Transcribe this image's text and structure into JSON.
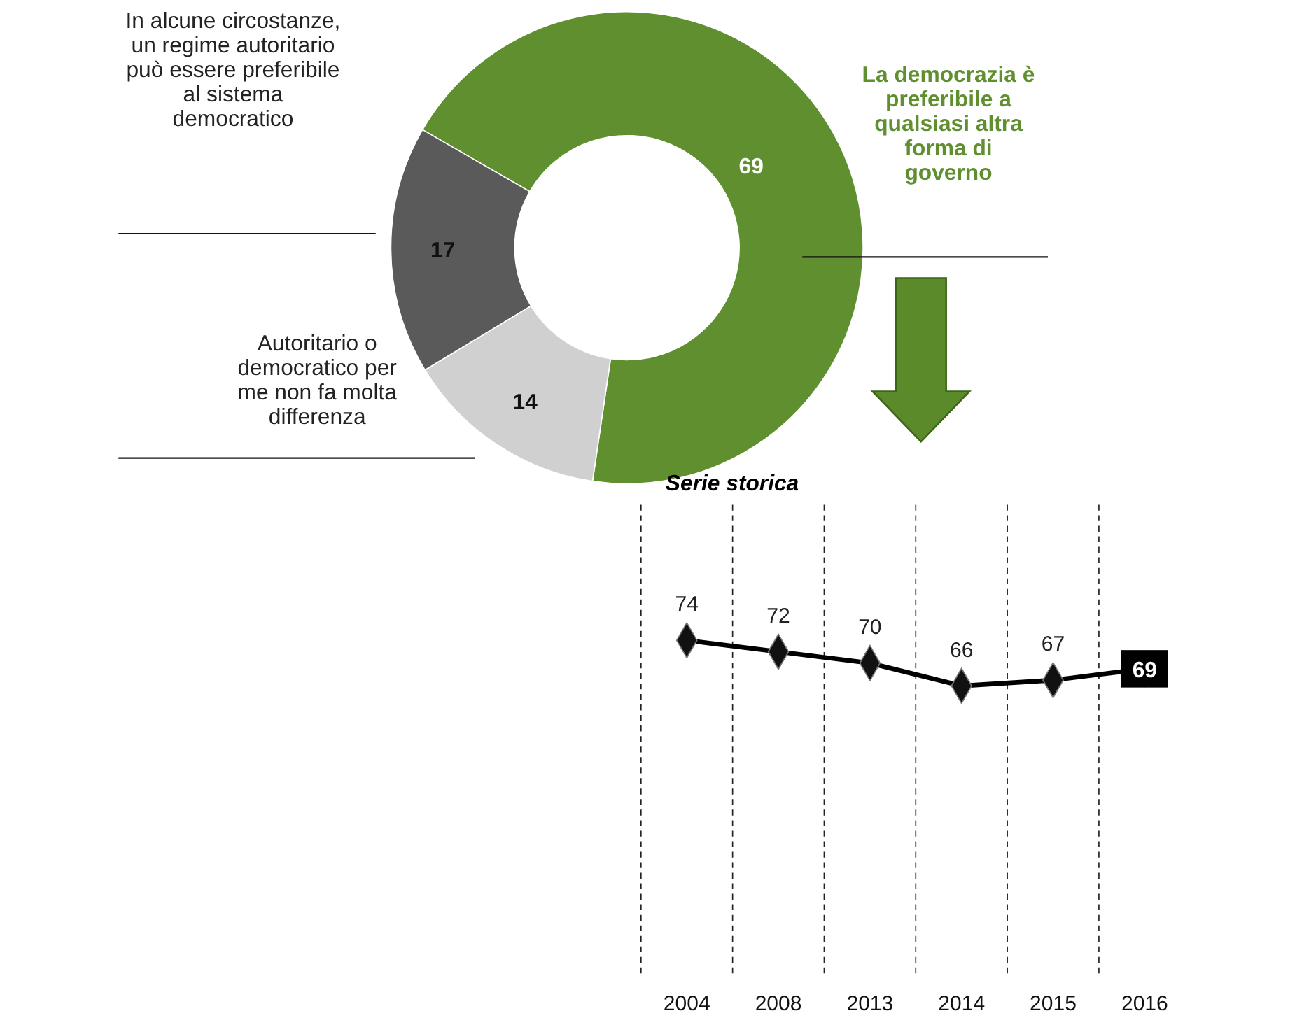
{
  "chart_data": [
    {
      "type": "donut",
      "categories": [
        "La democrazia è preferibile a qualsiasi altra forma di governo",
        "Autoritario o democratico per me non fa molta differenza",
        "In alcune circostanze, un regime autoritario può essere preferibile al sistema democratico"
      ],
      "values": [
        69,
        14,
        17
      ],
      "colors": [
        "#5f8f2f",
        "#d0d0d0",
        "#5a5a5a"
      ],
      "data_labels": true
    },
    {
      "type": "line",
      "title": "Serie storica",
      "categories": [
        "2004",
        "2008",
        "2013",
        "2014",
        "2015",
        "2016"
      ],
      "series": [
        {
          "color": "#000000",
          "values": [
            74,
            72,
            70,
            66,
            67,
            69
          ]
        }
      ],
      "marker": "diamond",
      "data_labels": true,
      "grid": "x"
    }
  ]
}
